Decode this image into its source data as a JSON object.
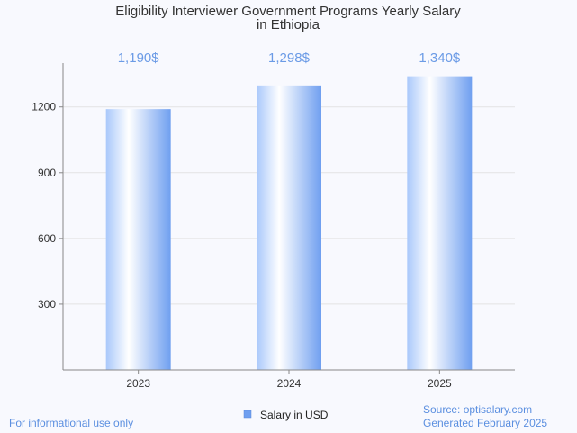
{
  "chart_data": {
    "type": "bar",
    "title": [
      "Eligibility Interviewer Government Programs Yearly Salary",
      "in Ethiopia"
    ],
    "categories": [
      "2023",
      "2024",
      "2025"
    ],
    "series": [
      {
        "name": "Salary in USD",
        "values": [
          1190,
          1298,
          1340
        ]
      }
    ],
    "data_labels": [
      "1,190$",
      "1,298$",
      "1,340$"
    ],
    "y_ticks": [
      300,
      600,
      900,
      1200
    ],
    "ylim": [
      0,
      1400
    ],
    "grid": true,
    "legend_position": "bottom-center"
  },
  "colors": {
    "bar_light": "#ffffff",
    "bar_mid": "#a9c8fb",
    "bar_dark": "#6f9ff0",
    "data_label": "#6b9be6",
    "footer": "#5b8fe0",
    "grid": "#e3e3e3",
    "axis": "#888888"
  },
  "footer": {
    "disclaimer": "For informational use only",
    "source": "Source: optisalary.com",
    "generated": "Generated February 2025"
  }
}
